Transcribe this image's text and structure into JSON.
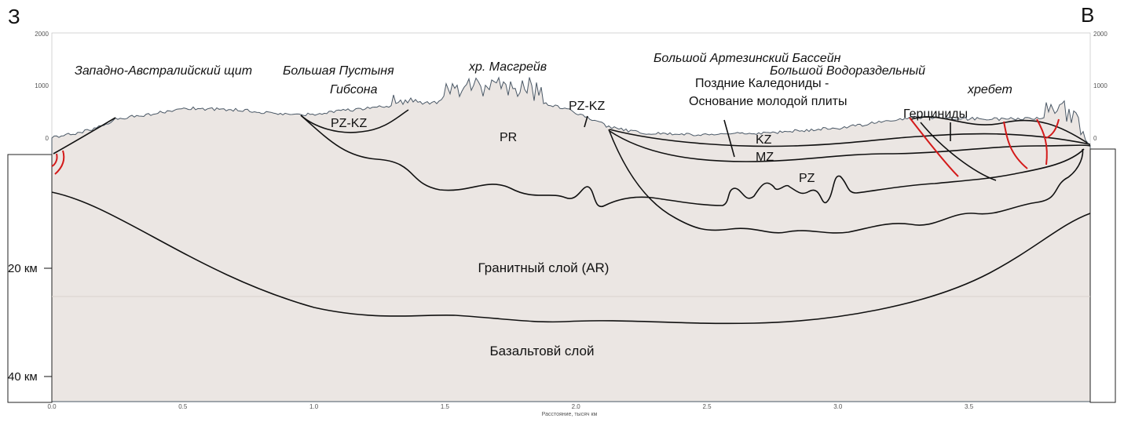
{
  "corners": {
    "west": "З",
    "east": "В"
  },
  "elevation_ticks_left": [
    "2000",
    "1000",
    "0"
  ],
  "elevation_ticks_right": [
    "2000",
    "1000",
    "0"
  ],
  "depth_ticks": [
    "20 км",
    "40 км"
  ],
  "distance_ticks": [
    "0.0",
    "0.5",
    "1.0",
    "1.5",
    "2.0",
    "2.5",
    "3.0",
    "3.5"
  ],
  "distance_axis_label": "Расстояние, тысяч км",
  "regions": [
    [
      "Западно-Австралийский щит"
    ],
    [
      "Большая Пустыня",
      "Гибсона"
    ],
    [
      "хр. Масгрейв"
    ],
    [
      "Большой Артезинский Бассейн"
    ],
    [
      "Большой Водораздельный",
      "хребет"
    ]
  ],
  "structures": [
    [
      "Поздние Каледониды -",
      "Основание молодой плиты"
    ],
    [
      "Герциниды"
    ]
  ],
  "units": [
    "PZ-KZ",
    "PR",
    "PZ-KZ",
    "KZ",
    "MZ",
    "PZ"
  ],
  "layers": [
    "Гранитный слой (AR)",
    "Базальтовй слой"
  ]
}
